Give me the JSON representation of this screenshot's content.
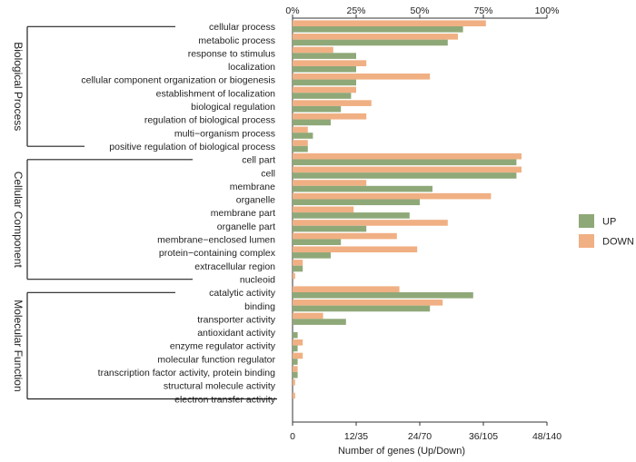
{
  "chart_data": {
    "type": "bar",
    "orientation": "horizontal",
    "xlabel": "Number of genes (Up/Down)",
    "top_axis": {
      "ticks": [
        "0%",
        "25%",
        "50%",
        "75%",
        "100%"
      ]
    },
    "bottom_axis": {
      "ticks": [
        "0",
        "12/35",
        "24/70",
        "36/105",
        "48/140"
      ]
    },
    "groups": [
      {
        "name": "Biological Process",
        "start": 0,
        "end": 9
      },
      {
        "name": "Cellular Component",
        "start": 10,
        "end": 19
      },
      {
        "name": "Molecular Function",
        "start": 20,
        "end": 28
      }
    ],
    "categories": [
      "cellular process",
      "metabolic process",
      "response to stimulus",
      "localization",
      "cellular component organization or biogenesis",
      "establishment of localization",
      "biological regulation",
      "regulation of biological process",
      "multi−organism process",
      "positive regulation of biological process",
      "cell part",
      "cell",
      "membrane",
      "organelle",
      "membrane part",
      "organelle part",
      "membrane−enclosed lumen",
      "protein−containing complex",
      "extracellular region",
      "nucleoid",
      "catalytic activity",
      "binding",
      "transporter activity",
      "antioxidant activity",
      "enzyme regulator activity",
      "molecular function regulator",
      "transcription factor activity, protein binding",
      "structural molecule activity",
      "electron transfer activity"
    ],
    "series": [
      {
        "name": "UP",
        "color": "#8fa878",
        "values_percent": [
          67,
          61,
          25,
          25,
          25,
          23,
          19,
          15,
          8,
          6,
          88,
          88,
          55,
          50,
          46,
          29,
          19,
          15,
          4,
          0,
          71,
          54,
          21,
          2,
          2,
          2,
          2,
          0,
          0
        ]
      },
      {
        "name": "DOWN",
        "color": "#f0b083",
        "values_percent": [
          76,
          65,
          16,
          29,
          54,
          25,
          31,
          29,
          6,
          6,
          90,
          90,
          29,
          78,
          24,
          61,
          41,
          49,
          4,
          1,
          42,
          59,
          12,
          0,
          4,
          4,
          2,
          1,
          1
        ]
      }
    ],
    "xlim": [
      0,
      100
    ],
    "legend_position": "right"
  }
}
